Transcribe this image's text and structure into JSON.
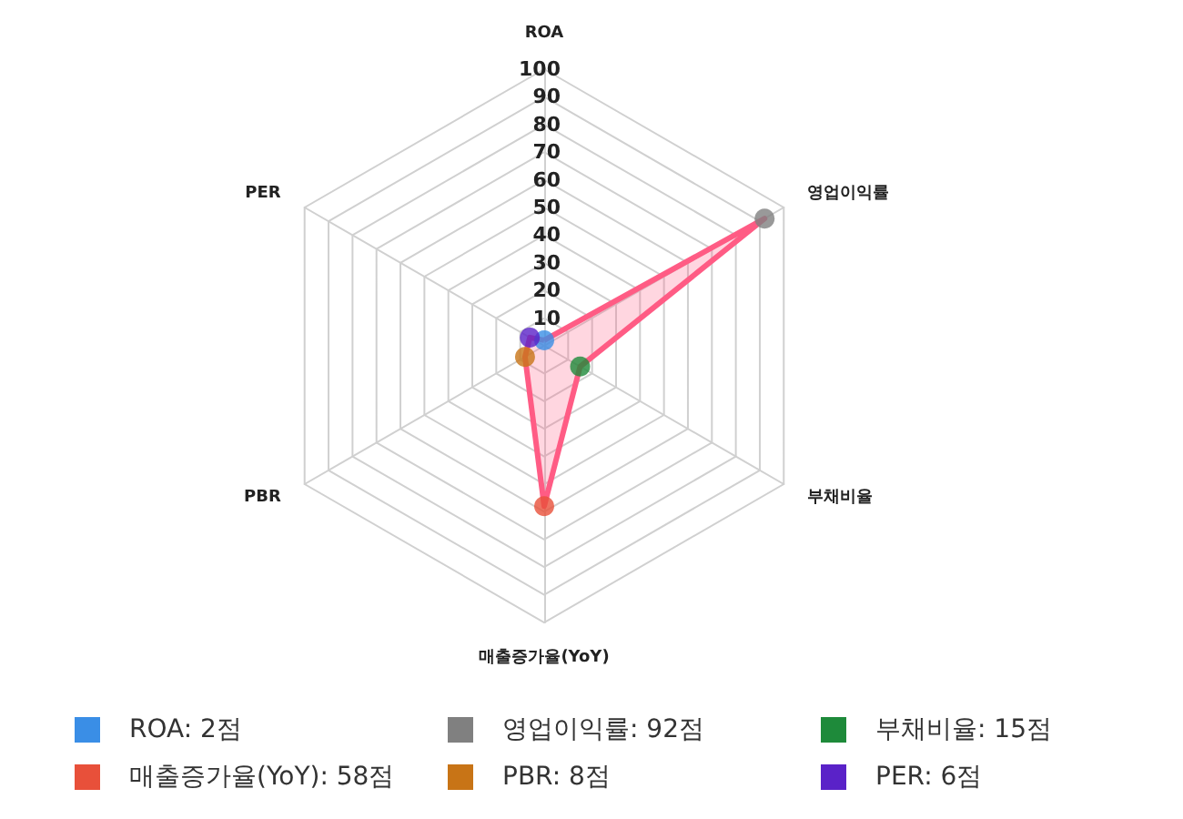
{
  "chart_data": {
    "type": "radar",
    "categories": [
      "ROA",
      "영업이익률",
      "부채비율",
      "매출증가율(YoY)",
      "PBR",
      "PER"
    ],
    "series": [
      {
        "color": "#ff5c85",
        "values": [
          2,
          92,
          15,
          58,
          8,
          6
        ]
      }
    ],
    "colors": [
      "#3a8ee6",
      "#808080",
      "#1e8a3a",
      "#e8503a",
      "#c87416",
      "#5a22c8"
    ],
    "value_labels": [
      "ROA: 2점",
      "영업이익률: 92점",
      "부채비율: 15점",
      "매출증가율(YoY): 58점",
      "PBR: 8점",
      "PER: 6점"
    ],
    "ylim": [
      0,
      100
    ],
    "yticks": [
      10,
      20,
      30,
      40,
      50,
      60,
      70,
      80,
      90,
      100
    ],
    "marker": "circle"
  }
}
